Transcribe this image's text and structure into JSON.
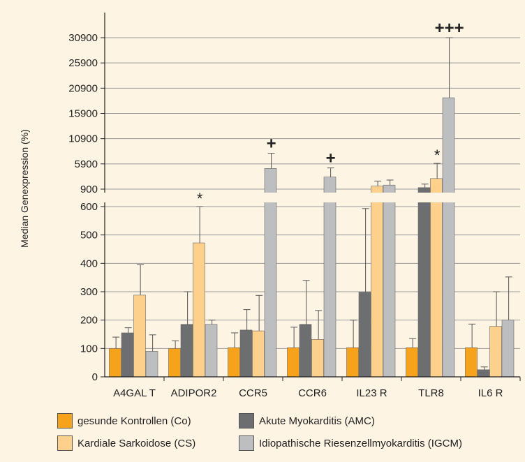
{
  "chart_data": {
    "type": "bar",
    "ylabel": "Median Genexpression (%)",
    "categories": [
      "A4GAL T",
      "ADIPOR2",
      "CCR5",
      "CCR6",
      "IL23 R",
      "TLR8",
      "IL6 R"
    ],
    "y_axis_break": {
      "lower_range": [
        0,
        600
      ],
      "lower_ticks": [
        0,
        100,
        200,
        300,
        400,
        500,
        600
      ],
      "upper_range": [
        900,
        33000
      ],
      "upper_ticks": [
        900,
        5900,
        10900,
        15900,
        20900,
        25900,
        30900
      ]
    },
    "series": [
      {
        "name": "gesunde Kontrollen (Co)",
        "color": "#f7a21b",
        "values": [
          100,
          100,
          103,
          103,
          103,
          103,
          103
        ],
        "errors": [
          40,
          27,
          52,
          72,
          97,
          32,
          83
        ]
      },
      {
        "name": "Akute Myokarditis (AMC)",
        "color": "#6d6e70",
        "values": [
          155,
          185,
          165,
          185,
          298,
          1200,
          25
        ],
        "errors": [
          18,
          115,
          72,
          155,
          295,
          700,
          10
        ]
      },
      {
        "name": "Kardiale Sarkoidose (CS)",
        "color": "#fdd18c",
        "values": [
          288,
          472,
          162,
          132,
          1500,
          3000,
          178
        ],
        "errors": [
          107,
          128,
          125,
          102,
          1000,
          3000,
          122
        ]
      },
      {
        "name": "Idiopathische Riesenzellmyokarditis (IGCM)",
        "color": "#bcbec0",
        "values": [
          90,
          185,
          5000,
          3300,
          1700,
          19000,
          200
        ],
        "errors": [
          58,
          15,
          3000,
          1800,
          1000,
          11900,
          152
        ]
      }
    ],
    "annotations": [
      {
        "category": "ADIPOR2",
        "series": "Kardiale Sarkoidose (CS)",
        "text": "*"
      },
      {
        "category": "CCR5",
        "series": "Idiopathische Riesenzellmyokarditis (IGCM)",
        "text": "+"
      },
      {
        "category": "CCR6",
        "series": "Idiopathische Riesenzellmyokarditis (IGCM)",
        "text": "+"
      },
      {
        "category": "TLR8",
        "series": "Kardiale Sarkoidose (CS)",
        "text": "*"
      },
      {
        "category": "TLR8",
        "series": "Idiopathische Riesenzellmyokarditis (IGCM)",
        "text": "+++"
      }
    ],
    "legend_position": "bottom",
    "grid": true
  }
}
